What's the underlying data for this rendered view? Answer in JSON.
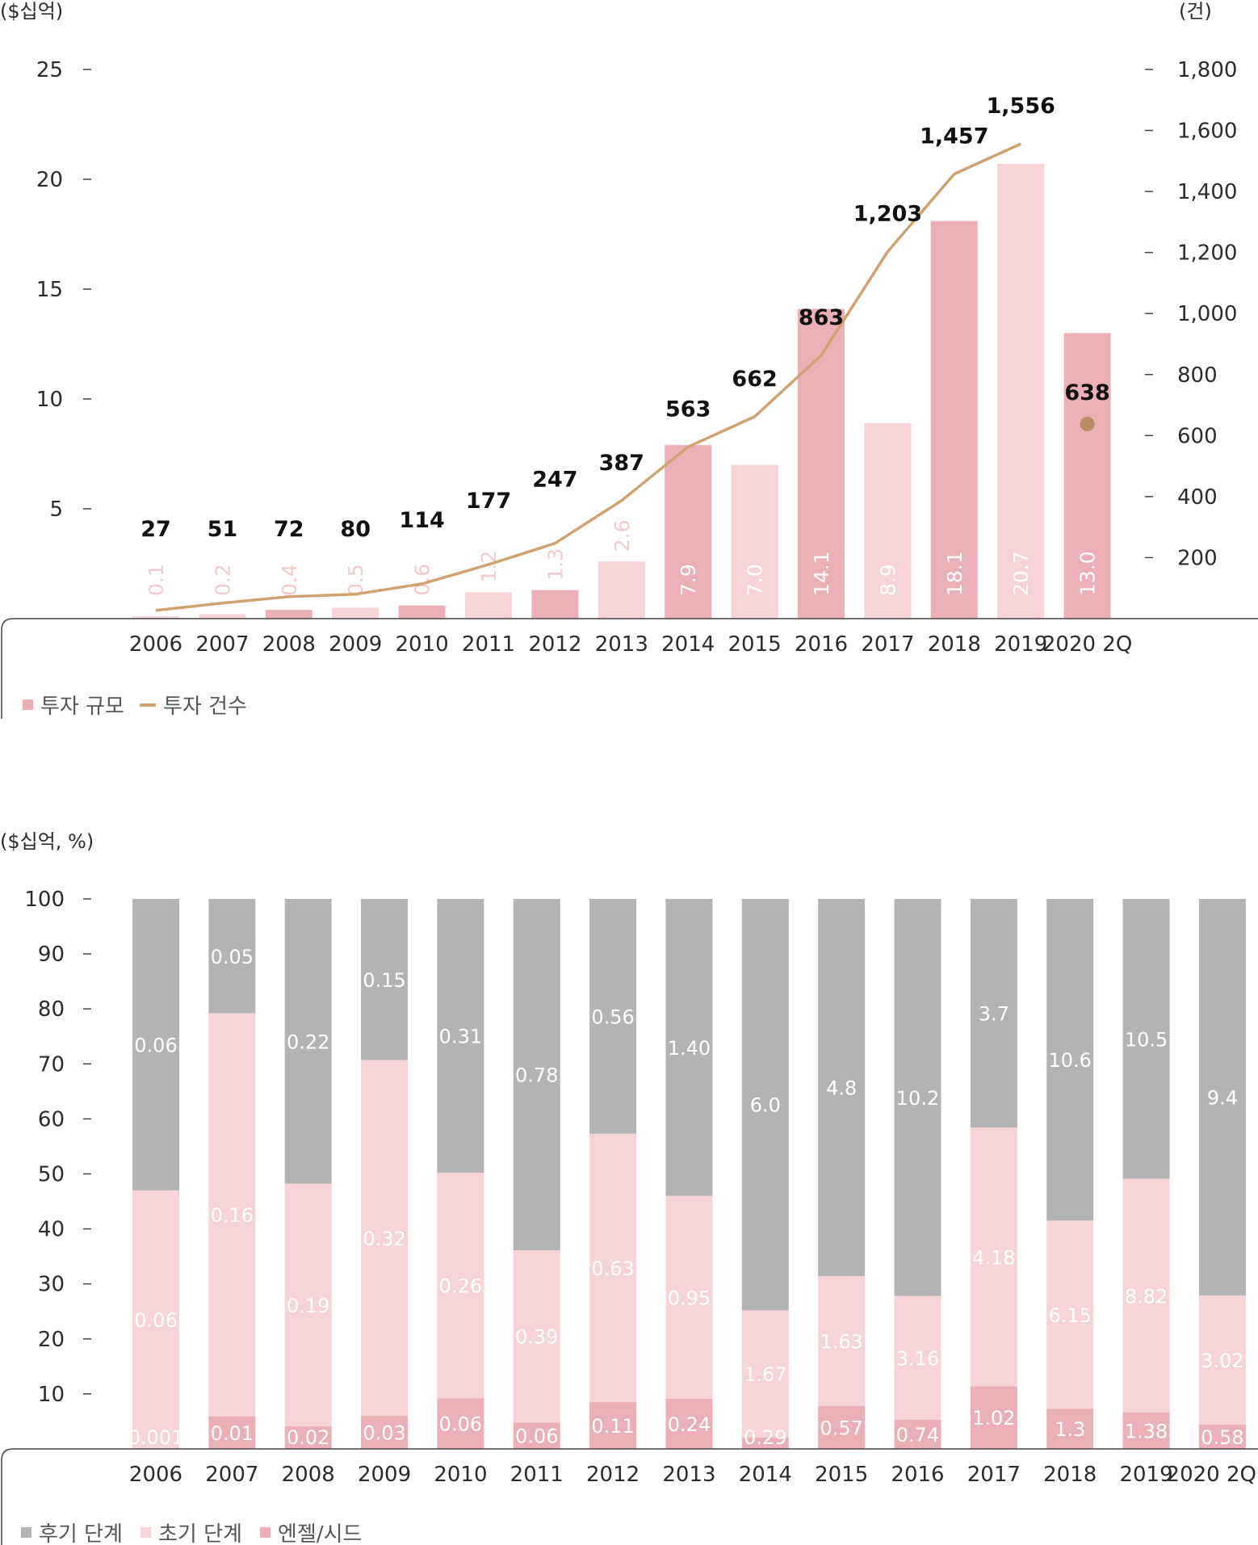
{
  "colors": {
    "bar_dark": "#ebb0b6",
    "bar_light": "#f5d3d6",
    "line": "#cfa271",
    "dot": "#b88c66",
    "late": "#b3b3b3",
    "early": "#f5d3d6",
    "seed": "#ebb0b6",
    "bar_label_on_light": "#f2c9cd",
    "axis": "#444444"
  },
  "chart1": {
    "left_unit": "($십억)",
    "right_unit": "(건)",
    "legend": {
      "size_label": "투자 규모",
      "count_label": "투자 건수"
    }
  },
  "chart2": {
    "unit": "($십억, %)",
    "legend": {
      "late_label": "후기 단계",
      "early_label": "초기 단계",
      "seed_label": "엔젤/시드"
    }
  },
  "chart_data": [
    {
      "type": "bar",
      "categories": [
        "2006",
        "2007",
        "2008",
        "2009",
        "2010",
        "2011",
        "2012",
        "2013",
        "2014",
        "2015",
        "2016",
        "2017",
        "2018",
        "2019",
        "2020 2Q"
      ],
      "series": [
        {
          "name": "투자 규모",
          "axis": "left",
          "values": [
            0.1,
            0.2,
            0.4,
            0.5,
            0.6,
            1.2,
            1.3,
            2.6,
            7.9,
            7.0,
            14.1,
            8.9,
            18.1,
            20.7,
            13.0
          ],
          "value_labels": [
            "0.1",
            "0.2",
            "0.4",
            "0.5",
            "0.6",
            "1.2",
            "1.3",
            "2.6",
            "7.9",
            "7.0",
            "14.1",
            "8.9",
            "18.1",
            "20.7",
            "13.0"
          ],
          "tone": [
            "light",
            "light",
            "dark",
            "light",
            "dark",
            "light",
            "dark",
            "light",
            "dark",
            "light",
            "dark",
            "light",
            "dark",
            "light",
            "dark"
          ]
        },
        {
          "name": "투자 건수",
          "axis": "right",
          "type": "line",
          "values": [
            27,
            51,
            72,
            80,
            114,
            177,
            247,
            387,
            563,
            662,
            863,
            1203,
            1457,
            1556,
            638
          ],
          "value_labels": [
            "27",
            "51",
            "72",
            "80",
            "114",
            "177",
            "247",
            "387",
            "563",
            "662",
            "863",
            "1,203",
            "1,457",
            "1,556",
            "638"
          ],
          "last_point_as_dot": true
        }
      ],
      "left_axis": {
        "ticks": [
          5,
          10,
          15,
          20,
          25
        ],
        "range": [
          0,
          25
        ]
      },
      "right_axis": {
        "ticks": [
          "200",
          "400",
          "600",
          "800",
          "1,000",
          "1,200",
          "1,400",
          "1,600",
          "1,800"
        ],
        "tick_values": [
          200,
          400,
          600,
          800,
          1000,
          1200,
          1400,
          1600,
          1800
        ],
        "range": [
          0,
          1800
        ]
      },
      "legend": "bottom-left",
      "grid": false
    },
    {
      "type": "bar",
      "stacked": true,
      "categories": [
        "2006",
        "2007",
        "2008",
        "2009",
        "2010",
        "2011",
        "2012",
        "2013",
        "2014",
        "2015",
        "2016",
        "2017",
        "2018",
        "2019",
        "2020 2Q"
      ],
      "series": [
        {
          "name": "엔젤/시드",
          "tone": "seed",
          "percent": [
            0,
            5.9,
            4.1,
            6.0,
            9.2,
            4.8,
            8.5,
            9.1,
            2.1,
            7.8,
            5.3,
            11.4,
            7.3,
            6.6,
            4.4
          ],
          "labels": [
            "0.001",
            "0.01",
            "0.02",
            "0.03",
            "0.06",
            "0.06",
            "0.11",
            "0.24",
            "0.29",
            "0.57",
            "0.74",
            "1.02",
            "1.3",
            "1.38",
            "0.58"
          ]
        },
        {
          "name": "초기 단계",
          "tone": "early",
          "percent": [
            47.0,
            73.3,
            44.1,
            64.7,
            41.0,
            31.3,
            48.8,
            36.9,
            23.1,
            23.6,
            22.5,
            47.0,
            34.2,
            42.5,
            23.5
          ],
          "labels": [
            "0.06",
            "0.16",
            "0.19",
            "0.32",
            "0.26",
            "0.39",
            "0.63",
            "0.95",
            "1.67",
            "1.63",
            "3.16",
            "4.18",
            "6.15",
            "8.82",
            "3.02"
          ]
        },
        {
          "name": "후기 단계",
          "tone": "late",
          "percent": [
            53.0,
            20.8,
            51.8,
            29.3,
            49.8,
            63.9,
            42.7,
            54.0,
            74.8,
            68.6,
            72.2,
            41.6,
            58.5,
            50.9,
            72.1
          ],
          "labels": [
            "0.06",
            "0.05",
            "0.22",
            "0.15",
            "0.31",
            "0.78",
            "0.56",
            "1.40",
            "6.0",
            "4.8",
            "10.2",
            "3.7",
            "10.6",
            "10.5",
            "9.4"
          ]
        }
      ],
      "y_axis": {
        "ticks": [
          10,
          20,
          30,
          40,
          50,
          60,
          70,
          80,
          90,
          100
        ],
        "range": [
          0,
          100
        ]
      },
      "legend": "bottom-left",
      "grid": false
    }
  ]
}
